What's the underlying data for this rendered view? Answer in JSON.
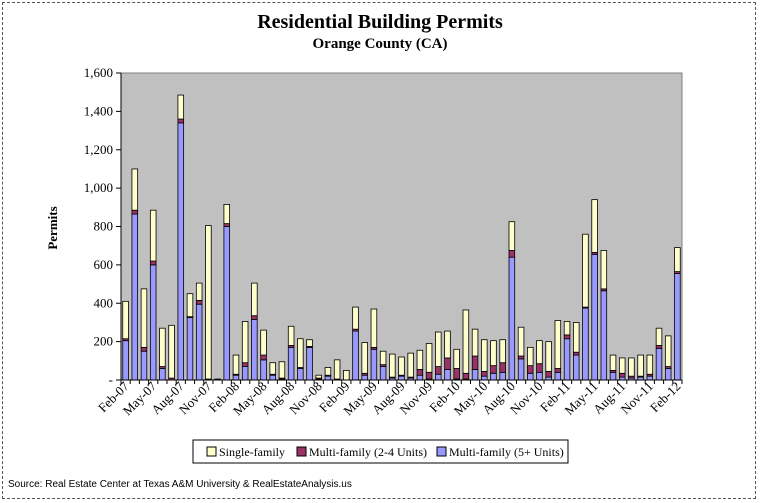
{
  "chart_data": {
    "type": "bar",
    "stacked": true,
    "title": "Residential Building Permits",
    "subtitle": "Orange County (CA)",
    "ylabel": "Permits",
    "ylim": [
      0,
      1600
    ],
    "yticks": [
      0,
      200,
      400,
      600,
      800,
      1000,
      1200,
      1400,
      1600
    ],
    "ytick_labels": [
      "-",
      "200",
      "400",
      "600",
      "800",
      "1,000",
      "1,200",
      "1,400",
      "1,600"
    ],
    "x_tick_labels": [
      "Feb-07",
      "May-07",
      "Aug-07",
      "Nov-07",
      "Feb-08",
      "May-08",
      "Aug-08",
      "Nov-08",
      "Feb-09",
      "May-09",
      "Aug-09",
      "Nov-09",
      "Feb-10",
      "May-10",
      "Aug-10",
      "Nov-10",
      "Feb-11",
      "May-11",
      "Aug-11",
      "Nov-11",
      "Feb-12"
    ],
    "legend_position": "bottom",
    "grid": false,
    "plot_background": "#c0c0c0",
    "categories": [
      "Feb-07",
      "Mar-07",
      "Apr-07",
      "May-07",
      "Jun-07",
      "Jul-07",
      "Aug-07",
      "Sep-07",
      "Oct-07",
      "Nov-07",
      "Dec-07",
      "Jan-08",
      "Feb-08",
      "Mar-08",
      "Apr-08",
      "May-08",
      "Jun-08",
      "Jul-08",
      "Aug-08",
      "Sep-08",
      "Oct-08",
      "Nov-08",
      "Dec-08",
      "Jan-09",
      "Feb-09",
      "Mar-09",
      "Apr-09",
      "May-09",
      "Jun-09",
      "Jul-09",
      "Aug-09",
      "Sep-09",
      "Oct-09",
      "Nov-09",
      "Dec-09",
      "Jan-10",
      "Feb-10",
      "Mar-10",
      "Apr-10",
      "May-10",
      "Jun-10",
      "Jul-10",
      "Aug-10",
      "Sep-10",
      "Oct-10",
      "Nov-10",
      "Dec-10",
      "Jan-11",
      "Feb-11",
      "Mar-11",
      "Apr-11",
      "May-11",
      "Jun-11",
      "Jul-11",
      "Aug-11",
      "Sep-11",
      "Oct-11",
      "Nov-11",
      "Dec-11",
      "Jan-12",
      "Feb-12"
    ],
    "series": [
      {
        "name": "Multi-family (5+ Units)",
        "color": "#9999ff",
        "values": [
          205,
          865,
          150,
          600,
          60,
          0,
          1340,
          325,
          395,
          0,
          0,
          800,
          25,
          70,
          315,
          105,
          25,
          5,
          170,
          60,
          170,
          5,
          20,
          0,
          0,
          255,
          25,
          160,
          70,
          10,
          20,
          10,
          25,
          5,
          30,
          55,
          5,
          5,
          55,
          20,
          35,
          40,
          640,
          110,
          35,
          40,
          15,
          40,
          215,
          130,
          375,
          655,
          465,
          40,
          15,
          10,
          15,
          20,
          165,
          60,
          555
        ],
        "display": [
          205,
          865,
          150,
          600,
          60,
          0,
          1340,
          325,
          395,
          0,
          0,
          800,
          25,
          70,
          315,
          105,
          25,
          5,
          170,
          60,
          170,
          5,
          20,
          0,
          0,
          255,
          25,
          160,
          70,
          10,
          20,
          10,
          25,
          5,
          30,
          55,
          5,
          5,
          55,
          20,
          35,
          40,
          640,
          110,
          35,
          40,
          15,
          40,
          215,
          130,
          375,
          655,
          465,
          40,
          15,
          10,
          15,
          20,
          165,
          60,
          555
        ]
      },
      {
        "name": "Multi-family (2-4 Units)",
        "color": "#993366",
        "values": [
          10,
          20,
          20,
          20,
          10,
          10,
          20,
          5,
          20,
          5,
          5,
          15,
          5,
          20,
          20,
          25,
          5,
          5,
          10,
          5,
          5,
          5,
          5,
          5,
          0,
          10,
          10,
          10,
          10,
          5,
          5,
          5,
          30,
          35,
          40,
          60,
          55,
          30,
          70,
          25,
          40,
          50,
          35,
          15,
          40,
          45,
          30,
          20,
          20,
          15,
          5,
          10,
          10,
          10,
          20,
          10,
          5,
          10,
          15,
          10,
          10
        ]
      },
      {
        "name": "Single-family",
        "color": "#ffffcc",
        "values": [
          195,
          215,
          305,
          265,
          200,
          275,
          125,
          120,
          90,
          800,
          0,
          100,
          100,
          215,
          170,
          130,
          60,
          85,
          100,
          150,
          35,
          15,
          40,
          100,
          50,
          115,
          160,
          200,
          70,
          120,
          95,
          125,
          100,
          150,
          180,
          140,
          100,
          330,
          140,
          165,
          130,
          120,
          150,
          150,
          95,
          120,
          155,
          250,
          70,
          155,
          380,
          275,
          200,
          80,
          80,
          95,
          110,
          100,
          90,
          160,
          125
        ]
      }
    ]
  },
  "legend": {
    "single": "Single-family",
    "multi24": "Multi-family (2-4 Units)",
    "multi5": "Multi-family (5+ Units)"
  },
  "source": "Source: Real Estate Center at Texas A&M University & RealEstateAnalysis.us"
}
